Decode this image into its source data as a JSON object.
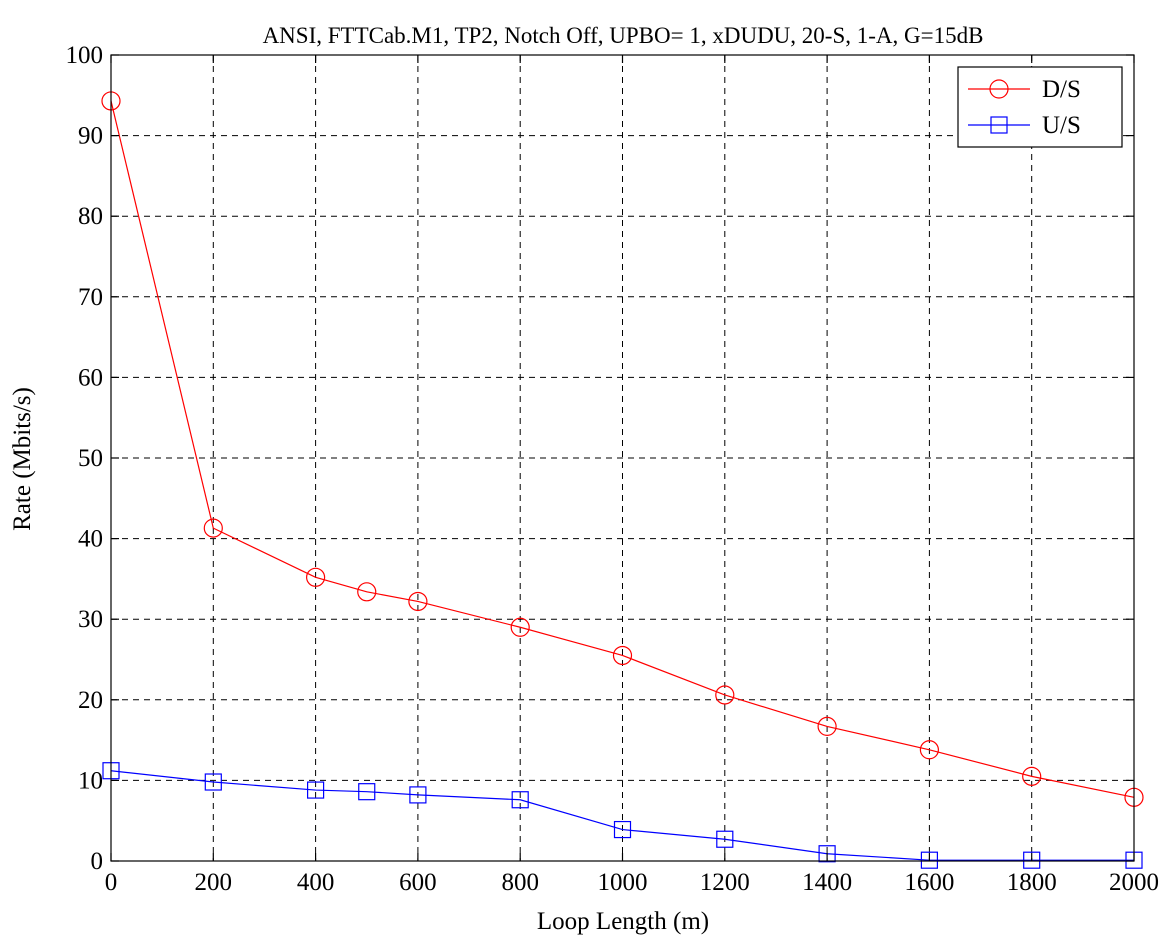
{
  "chart_data": {
    "type": "line",
    "title": "ANSI, FTTCab.M1, TP2, Notch Off, UPBO= 1, xDUDU, 20-S, 1-A, G=15dB",
    "xlabel": "Loop Length (m)",
    "ylabel": "Rate (Mbits/s)",
    "xlim": [
      0,
      2000
    ],
    "ylim": [
      0,
      100
    ],
    "xticks": [
      0,
      200,
      400,
      600,
      800,
      1000,
      1200,
      1400,
      1600,
      1800,
      2000
    ],
    "yticks": [
      0,
      10,
      20,
      30,
      40,
      50,
      60,
      70,
      80,
      90,
      100
    ],
    "grid": true,
    "legend_position": "top-right",
    "series": [
      {
        "name": "D/S",
        "color": "#ff0000",
        "marker": "circle",
        "x": [
          0,
          200,
          400,
          500,
          600,
          800,
          1000,
          1200,
          1400,
          1600,
          1800,
          2000
        ],
        "y": [
          94.3,
          41.3,
          35.2,
          33.4,
          32.2,
          29.0,
          25.5,
          20.6,
          16.7,
          13.8,
          10.5,
          7.9
        ]
      },
      {
        "name": "U/S",
        "color": "#0000ff",
        "marker": "square",
        "x": [
          0,
          200,
          400,
          500,
          600,
          800,
          1000,
          1200,
          1400,
          1600,
          1800,
          2000
        ],
        "y": [
          11.2,
          9.8,
          8.8,
          8.6,
          8.2,
          7.6,
          3.9,
          2.7,
          0.9,
          0.1,
          0.1,
          0.1
        ]
      }
    ]
  }
}
